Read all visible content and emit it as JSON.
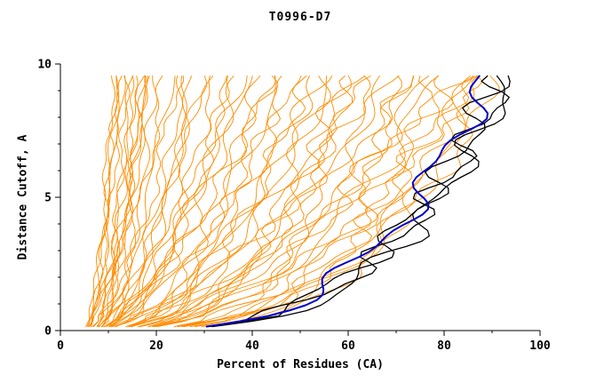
{
  "chart_data": {
    "type": "line",
    "title": "T0996-D7",
    "xlabel": "Percent of Residues (CA)",
    "ylabel": "Distance Cutoff, A",
    "xlim": [
      0,
      100
    ],
    "ylim": [
      0,
      10
    ],
    "x_ticks": [
      0,
      20,
      40,
      60,
      80,
      100
    ],
    "y_ticks": [
      0,
      5,
      10
    ],
    "x_minor_step": 10,
    "y_minor_step": 1,
    "grid": false,
    "legend": "none",
    "colors": {
      "ensemble": "#ff8c00",
      "reference": "#000000",
      "highlight": "#0000cd"
    },
    "curve_model": "x(y) = x0 + (x1-x0)*(y/10)^a for y in [0.15, 9.7]; each curve listed as [x0, x1, a]",
    "series_groups": [
      {
        "name": "model-curve",
        "color": "#ff8c00",
        "width": 0.9,
        "curves": [
          [
            5,
            11,
            0.5
          ],
          [
            6,
            13,
            0.6
          ],
          [
            4,
            12,
            0.45
          ],
          [
            7,
            15,
            0.55
          ],
          [
            5,
            16,
            0.5
          ],
          [
            8,
            18,
            0.6
          ],
          [
            6,
            14,
            0.4
          ],
          [
            5,
            19,
            0.65
          ],
          [
            9,
            20,
            0.5
          ],
          [
            7,
            17,
            0.45
          ],
          [
            6,
            12,
            0.7
          ],
          [
            8,
            16,
            0.5
          ],
          [
            5,
            13,
            0.55
          ],
          [
            7,
            19,
            0.6
          ],
          [
            6,
            18,
            0.5
          ],
          [
            5,
            22,
            0.5
          ],
          [
            6,
            25,
            0.55
          ],
          [
            7,
            28,
            0.45
          ],
          [
            5,
            30,
            0.6
          ],
          [
            8,
            33,
            0.5
          ],
          [
            6,
            35,
            0.4
          ],
          [
            7,
            38,
            0.55
          ],
          [
            5,
            40,
            0.5
          ],
          [
            9,
            42,
            0.45
          ],
          [
            6,
            45,
            0.6
          ],
          [
            7,
            48,
            0.5
          ],
          [
            8,
            24,
            0.65
          ],
          [
            5,
            27,
            0.35
          ],
          [
            6,
            31,
            0.5
          ],
          [
            7,
            36,
            0.55
          ],
          [
            8,
            44,
            0.4
          ],
          [
            5,
            47,
            0.5
          ],
          [
            6,
            39,
            0.6
          ],
          [
            9,
            26,
            0.5
          ],
          [
            7,
            50,
            0.45
          ],
          [
            5,
            52,
            0.4
          ],
          [
            6,
            55,
            0.5
          ],
          [
            7,
            58,
            0.45
          ],
          [
            5,
            60,
            0.35
          ],
          [
            8,
            63,
            0.5
          ],
          [
            6,
            65,
            0.4
          ],
          [
            7,
            68,
            0.45
          ],
          [
            5,
            70,
            0.38
          ],
          [
            6,
            72,
            0.42
          ],
          [
            7,
            75,
            0.4
          ],
          [
            8,
            78,
            0.36
          ],
          [
            5,
            80,
            0.4
          ],
          [
            6,
            54,
            0.5
          ],
          [
            7,
            62,
            0.38
          ],
          [
            5,
            66,
            0.44
          ],
          [
            6,
            74,
            0.36
          ],
          [
            8,
            57,
            0.48
          ],
          [
            5,
            77,
            0.4
          ],
          [
            5,
            82,
            0.34
          ],
          [
            6,
            84,
            0.32
          ],
          [
            5,
            86,
            0.33
          ],
          [
            7,
            88,
            0.3
          ],
          [
            5,
            90,
            0.31
          ],
          [
            6,
            91,
            0.3
          ],
          [
            5,
            85,
            0.35
          ],
          [
            6,
            89,
            0.32
          ]
        ]
      },
      {
        "name": "reference-curve",
        "color": "#000000",
        "width": 1.3,
        "curves": [
          [
            5,
            95,
            0.28
          ],
          [
            5,
            93,
            0.3
          ],
          [
            4,
            94,
            0.29
          ]
        ]
      },
      {
        "name": "highlight-curve",
        "color": "#0000cd",
        "width": 2,
        "curves": [
          [
            5,
            90,
            0.29
          ]
        ]
      }
    ]
  }
}
